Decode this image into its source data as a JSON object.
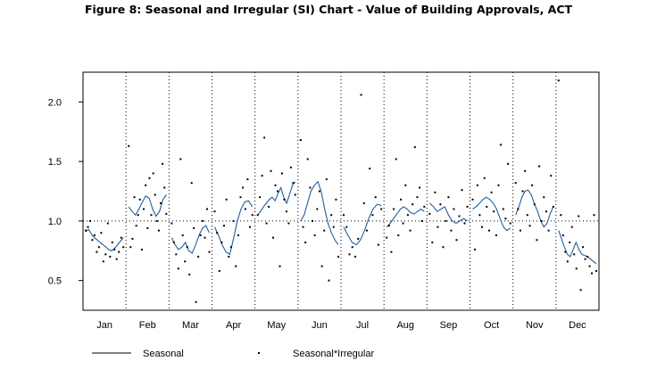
{
  "title": "Figure 8: Seasonal and Irregular (SI) Chart - Value of Building Approvals, ACT",
  "chart_data": {
    "type": "line",
    "title": "Figure 8: Seasonal and Irregular (SI) Chart - Value of Building Approvals, ACT",
    "xlabel": "",
    "ylabel": "",
    "months": [
      "Jan",
      "Feb",
      "Mar",
      "Apr",
      "May",
      "Jun",
      "Jul",
      "Aug",
      "Sep",
      "Oct",
      "Nov",
      "Dec"
    ],
    "ylim": [
      0.25,
      2.25
    ],
    "yticks": [
      "0.5",
      "1.0",
      "1.5",
      "2.0"
    ],
    "reference_line": 1.0,
    "grid": "dotted vertical separators between months",
    "legend_position": "bottom",
    "series": [
      {
        "name": "Seasonal",
        "style": "line",
        "color": "#1f5f9e",
        "segments": [
          [
            0.91,
            0.93,
            0.89,
            0.86,
            0.84,
            0.82,
            0.8,
            0.78,
            0.76,
            0.75,
            0.77,
            0.8,
            0.83,
            0.86
          ],
          [
            1.12,
            1.08,
            1.05,
            1.1,
            1.16,
            1.21,
            1.19,
            1.1,
            1.04,
            1.08,
            1.18,
            1.22
          ],
          [
            0.86,
            0.8,
            0.76,
            0.78,
            0.82,
            0.75,
            0.73,
            0.8,
            0.88,
            0.94,
            0.96,
            0.9
          ],
          [
            0.95,
            0.88,
            0.8,
            0.74,
            0.72,
            0.85,
            1.0,
            1.1,
            1.16,
            1.17,
            1.12
          ],
          [
            1.05,
            1.08,
            1.12,
            1.15,
            1.18,
            1.2,
            1.17,
            1.23,
            1.28,
            1.2,
            1.15,
            1.22,
            1.3,
            1.33
          ],
          [
            1.0,
            1.05,
            1.15,
            1.25,
            1.3,
            1.33,
            1.25,
            1.1,
            0.98,
            0.9,
            0.84,
            0.8
          ],
          [
            0.95,
            0.88,
            0.82,
            0.8,
            0.84,
            0.92,
            1.02,
            1.1,
            1.14,
            1.13
          ],
          [
            0.95,
            0.98,
            1.02,
            1.06,
            1.1,
            1.12,
            1.1,
            1.07,
            1.06,
            1.08,
            1.1,
            1.08
          ],
          [
            1.15,
            1.12,
            1.08,
            1.1,
            1.12,
            1.05,
            1.0,
            0.98,
            1.0,
            1.02,
            1.0
          ],
          [
            1.1,
            1.12,
            1.15,
            1.18,
            1.2,
            1.18,
            1.15,
            1.1,
            1.02,
            0.95,
            0.92,
            0.94
          ],
          [
            1.05,
            1.12,
            1.2,
            1.25,
            1.26,
            1.22,
            1.14,
            1.08,
            1.0,
            0.95,
            0.98,
            1.06,
            1.12
          ],
          [
            0.92,
            0.85,
            0.78,
            0.72,
            0.7,
            0.76,
            0.82,
            0.76,
            0.72,
            0.71,
            0.7,
            0.68,
            0.66,
            0.64
          ]
        ]
      },
      {
        "name": "Seasonal*Irregular",
        "style": "points",
        "color": "#000000",
        "points_per_month": [
          [
            0.92,
            0.95,
            1.0,
            0.84,
            0.88,
            0.74,
            0.78,
            0.9,
            0.66,
            0.72,
            0.98,
            0.7,
            0.82,
            0.76,
            0.68,
            0.74,
            0.86,
            0.78
          ],
          [
            1.63,
            0.78,
            0.85,
            1.2,
            0.96,
            1.05,
            1.18,
            0.76,
            1.1,
            1.3,
            0.94,
            1.36,
            1.05,
            1.4,
            1.22,
            1.0,
            0.92,
            1.15,
            1.48,
            1.28,
            1.06
          ],
          [
            0.98,
            0.82,
            0.72,
            0.6,
            1.52,
            0.88,
            0.66,
            0.78,
            0.55,
            1.32,
            0.94,
            0.32,
            0.7,
            0.88,
            1.0,
            0.86,
            1.1,
            0.74
          ],
          [
            1.08,
            0.9,
            0.58,
            0.82,
            0.96,
            1.18,
            0.7,
            0.78,
            1.0,
            0.62,
            0.88,
            1.2,
            1.28,
            1.1,
            1.35,
            0.95,
            1.05
          ],
          [
            1.05,
            1.2,
            1.38,
            1.7,
            0.98,
            1.12,
            1.42,
            0.86,
            1.3,
            1.25,
            0.62,
            1.4,
            1.18,
            1.08,
            0.98,
            1.45,
            1.32,
            1.22
          ],
          [
            1.68,
            0.95,
            0.82,
            1.52,
            1.28,
            1.0,
            0.88,
            1.1,
            1.25,
            0.62,
            0.92,
            1.35,
            0.5,
            1.05,
            0.95,
            1.18,
            0.7
          ],
          [
            1.05,
            0.95,
            0.72,
            0.78,
            0.7,
            0.85,
            2.06,
            1.15,
            0.92,
            1.44,
            1.05,
            1.2,
            0.8,
            1.1
          ],
          [
            0.86,
            0.96,
            0.74,
            1.1,
            1.52,
            0.88,
            1.18,
            0.98,
            1.3,
            1.05,
            0.92,
            1.14,
            1.62,
            1.2,
            1.28,
            1.0,
            1.12
          ],
          [
            1.06,
            0.82,
            1.24,
            0.95,
            1.14,
            0.78,
            1.0,
            1.2,
            0.92,
            1.1,
            0.84,
            1.04,
            1.26,
            0.98,
            1.12
          ],
          [
            1.18,
            0.76,
            1.3,
            1.05,
            0.95,
            1.36,
            1.12,
            0.92,
            1.24,
            1.08,
            0.88,
            1.3,
            1.64,
            1.1,
            1.02,
            1.48,
            0.98
          ],
          [
            1.32,
            1.1,
            0.92,
            1.25,
            1.42,
            1.05,
            0.96,
            1.3,
            1.14,
            0.84,
            1.46,
            1.0,
            1.2,
            1.08,
            0.92,
            1.38,
            1.12
          ],
          [
            2.18,
            1.05,
            0.88,
            0.74,
            0.66,
            0.82,
            0.95,
            0.72,
            0.6,
            1.04,
            0.42,
            0.78,
            0.68,
            0.7,
            0.62,
            0.56,
            1.05,
            0.58
          ]
        ]
      }
    ]
  },
  "legend": {
    "seasonal_label": "Seasonal",
    "si_label": "Seasonal*Irregular"
  }
}
